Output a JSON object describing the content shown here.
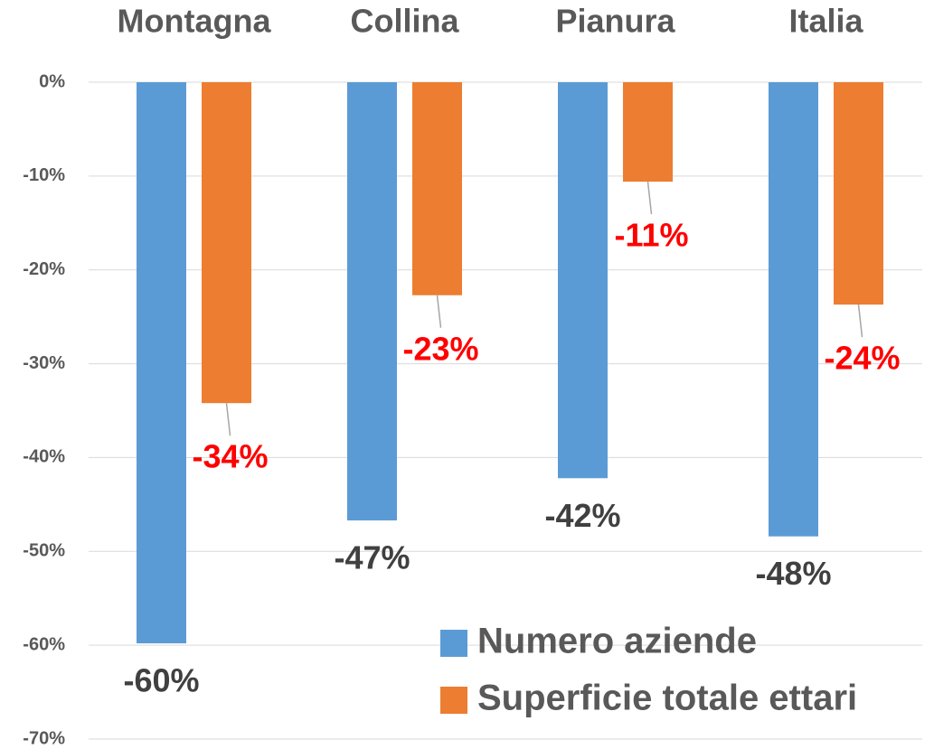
{
  "chart_data": {
    "type": "bar",
    "categories": [
      "Montagna",
      "Collina",
      "Pianura",
      "Italia"
    ],
    "series": [
      {
        "name": "Numero aziende",
        "color": "#5b9bd5",
        "values": [
          -59.8,
          -46.7,
          -42.2,
          -48.4
        ],
        "value_labels": [
          "-60%",
          "-47%",
          "-42%",
          "-48%"
        ],
        "label_color": "#404040"
      },
      {
        "name": "Superficie totale ettari",
        "color": "#ed7d31",
        "values": [
          -34.2,
          -22.7,
          -10.6,
          -23.7
        ],
        "value_labels": [
          "-34%",
          "-23%",
          "-11%",
          "-24%"
        ],
        "label_color": "#ff0000"
      }
    ],
    "ylim": [
      -70,
      0
    ],
    "yticks": [
      {
        "value": 0,
        "label": "0%"
      },
      {
        "value": -10,
        "label": "-10%"
      },
      {
        "value": -20,
        "label": "-20%"
      },
      {
        "value": -30,
        "label": "-30%"
      },
      {
        "value": -40,
        "label": "-40%"
      },
      {
        "value": -50,
        "label": "-50%"
      },
      {
        "value": -60,
        "label": "-60%"
      },
      {
        "value": -70,
        "label": "-70%"
      }
    ],
    "grid": true,
    "legend": "bottom-right"
  }
}
